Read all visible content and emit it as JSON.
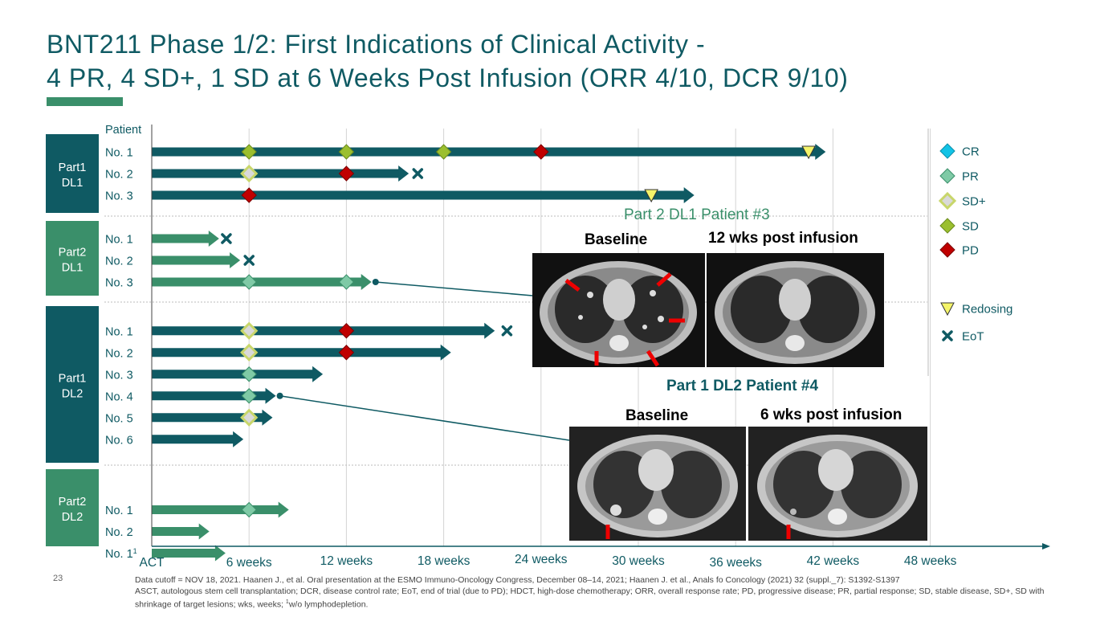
{
  "title": {
    "line1": "BNT211 Phase 1/2: First Indications of Clinical Activity -",
    "line2": "4 PR, 4 SD+, 1 SD at 6 Weeks Post Infusion (ORR 4/10, DCR 9/10)"
  },
  "slide_number": "23",
  "footnote": {
    "line1": "Data cutoff = NOV 18, 2021. Haanen J., et al. Oral presentation at the ESMO Immuno-Oncology Congress, December 08–14, 2021; Haanen J. et al., Anals fo Concology (2021) 32 (suppl._7): S1392-S1397",
    "line2": "ASCT, autologous stem cell transplantation; DCR, disease control rate; EoT, end of trial (due to PD); HDCT, high-dose chemotherapy; ORR, overall response rate; PD, progressive disease; PR, partial response; SD, stable disease, SD+, SD with shrinkage of target lesions; wks, weeks; ",
    "sup": "1",
    "line3": "w/o lymphodepletion."
  },
  "colors": {
    "teal_dark": "#0f5a63",
    "green": "#3a8f6a",
    "cr": "#12c3e6",
    "pr": "#7fcaa6",
    "sd_plus_border": "#c8d66a",
    "sd_plus_fill": "#d9d9d9",
    "sd": "#9bbf2f",
    "pd": "#c00000",
    "redosing": "#f4f46a"
  },
  "chart_data": {
    "type": "swimmer",
    "x_axis": {
      "unit": "weeks",
      "range": [
        0,
        55
      ],
      "ticks": [
        {
          "value": 0,
          "label": "ACT"
        },
        {
          "value": 6,
          "label": "6 weeks"
        },
        {
          "value": 12,
          "label": "12 weeks"
        },
        {
          "value": 18,
          "label": "18 weeks"
        },
        {
          "value": 24,
          "label": "24 weeks"
        },
        {
          "value": 30,
          "label": "30 weeks"
        },
        {
          "value": 36,
          "label": "36 weeks"
        },
        {
          "value": 42,
          "label": "42 weeks"
        },
        {
          "value": 48,
          "label": "48 weeks"
        }
      ]
    },
    "y_axis_label": "Patient",
    "groups": [
      {
        "name": "Part1\nDL1",
        "line1": "Part1",
        "line2": "DL1",
        "color": "#0f5a63",
        "patients": [
          {
            "label": "No. 1",
            "duration": 41.5,
            "events": [
              {
                "week": 6,
                "type": "SD"
              },
              {
                "week": 12,
                "type": "SD"
              },
              {
                "week": 18,
                "type": "SD"
              },
              {
                "week": 24,
                "type": "PD"
              },
              {
                "week": 40.5,
                "type": "Redosing"
              }
            ]
          },
          {
            "label": "No. 2",
            "duration": 15.8,
            "events": [
              {
                "week": 6,
                "type": "SD+"
              },
              {
                "week": 12,
                "type": "PD"
              },
              {
                "week": 16.4,
                "type": "EoT"
              }
            ]
          },
          {
            "label": "No. 3",
            "duration": 33.4,
            "events": [
              {
                "week": 6,
                "type": "PD"
              },
              {
                "week": 30.8,
                "type": "Redosing"
              }
            ]
          }
        ]
      },
      {
        "name": "Part2\nDL1",
        "line1": "Part2",
        "line2": "DL1",
        "color": "#3a8f6a",
        "patients": [
          {
            "label": "No. 1",
            "duration": 4.1,
            "events": [
              {
                "week": 4.6,
                "type": "EoT"
              }
            ]
          },
          {
            "label": "No. 2",
            "duration": 5.4,
            "events": [
              {
                "week": 6,
                "type": "EoT"
              }
            ]
          },
          {
            "label": "No. 3",
            "duration": 13.5,
            "events": [
              {
                "week": 6,
                "type": "PR"
              },
              {
                "week": 12,
                "type": "PR"
              },
              {
                "week": 13.8,
                "type": "Highlight"
              }
            ]
          }
        ]
      },
      {
        "name": "Part1\nDL2",
        "line1": "Part1",
        "line2": "DL2",
        "color": "#0f5a63",
        "patients": [
          {
            "label": "No. 1",
            "duration": 21.1,
            "events": [
              {
                "week": 6,
                "type": "SD+"
              },
              {
                "week": 12,
                "type": "PD"
              },
              {
                "week": 21.9,
                "type": "EoT"
              }
            ]
          },
          {
            "label": "No. 2",
            "duration": 18.4,
            "events": [
              {
                "week": 6,
                "type": "SD+"
              },
              {
                "week": 12,
                "type": "PD"
              }
            ]
          },
          {
            "label": "No. 3",
            "duration": 10.5,
            "events": [
              {
                "week": 6,
                "type": "PR"
              }
            ]
          },
          {
            "label": "No. 4",
            "duration": 7.6,
            "events": [
              {
                "week": 6,
                "type": "PR"
              },
              {
                "week": 7.9,
                "type": "Highlight"
              }
            ]
          },
          {
            "label": "No. 5",
            "duration": 7.4,
            "events": [
              {
                "week": 6,
                "type": "SD+"
              }
            ]
          },
          {
            "label": "No. 6",
            "duration": 5.6,
            "events": []
          }
        ]
      },
      {
        "name": "Part2\nDL2",
        "line1": "Part2",
        "line2": "DL2",
        "color": "#3a8f6a",
        "patients": [
          {
            "label": "No. 1",
            "duration": 8.4,
            "events": [
              {
                "week": 6,
                "type": "PR"
              }
            ]
          },
          {
            "label": "No. 2",
            "duration": 3.5,
            "events": []
          },
          {
            "label": "No. 1",
            "sup": "1",
            "duration": 4.5,
            "events": []
          }
        ]
      }
    ],
    "legend": [
      {
        "type": "CR",
        "label": "CR"
      },
      {
        "type": "PR",
        "label": "PR"
      },
      {
        "type": "SD+",
        "label": "SD+"
      },
      {
        "type": "SD",
        "label": "SD"
      },
      {
        "type": "PD",
        "label": "PD"
      },
      {
        "type": "Redosing",
        "label": "Redosing"
      },
      {
        "type": "EoT",
        "label": "EoT"
      }
    ]
  },
  "ct_panels": [
    {
      "title": "Part 2 DL1 Patient #3",
      "baseline_label": "Baseline",
      "post_label": "12 wks post infusion"
    },
    {
      "title": "Part 1 DL2 Patient #4",
      "baseline_label": "Baseline",
      "post_label": "6 wks post infusion"
    }
  ]
}
